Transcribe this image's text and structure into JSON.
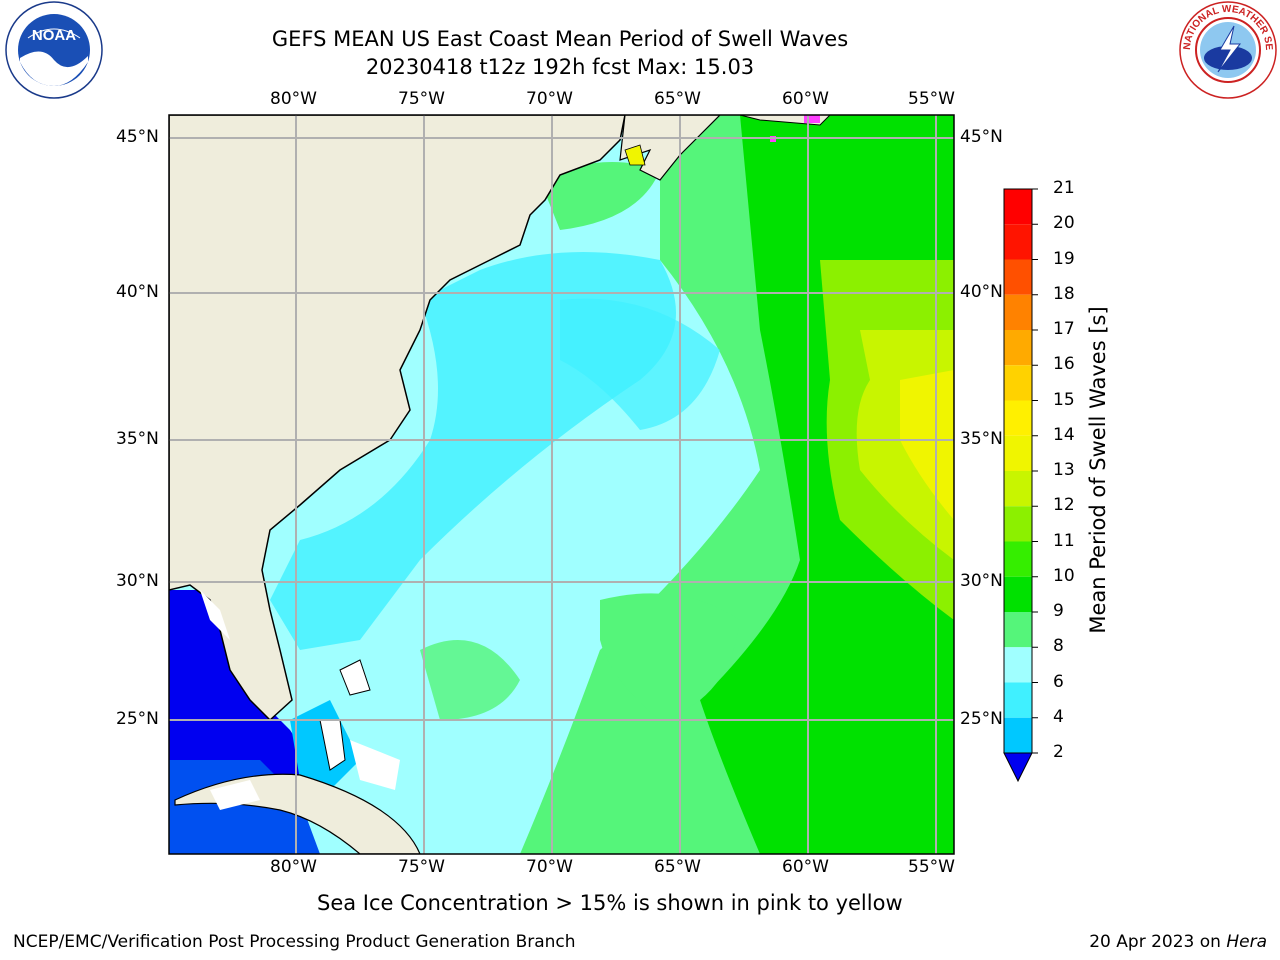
{
  "title_line1": "GEFS MEAN US East Coast Mean Period of Swell Waves",
  "title_line2": "20230418 t12z 192h fcst   Max: 15.03",
  "logos": {
    "left": {
      "icon": "noaa-logo",
      "text": "NOAA"
    },
    "right": {
      "icon": "nws-logo",
      "text": "NATIONAL WEATHER SERVICE"
    }
  },
  "map": {
    "lon_labels": [
      "80°W",
      "75°W",
      "70°W",
      "65°W",
      "60°W",
      "55°W"
    ],
    "lat_labels": [
      "45°N",
      "40°N",
      "35°N",
      "30°N",
      "25°N"
    ],
    "land_color": "#efeddc",
    "grid_color": "#b0b0b0"
  },
  "colorbar": {
    "label": "Mean Period of Swell Waves [s]",
    "ticks": [
      "2",
      "4",
      "6",
      "8",
      "9",
      "10",
      "11",
      "12",
      "13",
      "14",
      "15",
      "16",
      "17",
      "18",
      "19",
      "20",
      "21"
    ],
    "colors": [
      "#0050f0",
      "#00c8ff",
      "#40f0ff",
      "#a0ffff",
      "#55f57a",
      "#00e100",
      "#35ee00",
      "#8cf000",
      "#c8f500",
      "#f0f500",
      "#fff000",
      "#ffd200",
      "#ffaa00",
      "#ff8200",
      "#ff5000",
      "#ff1400",
      "#ff0000"
    ],
    "under_color": "#0000f0"
  },
  "ice_note": "Sea Ice Concentration > 15% is shown in pink to yellow",
  "footer": {
    "left": "NCEP/EMC/Verification Post Processing Product Generation Branch",
    "date": "20 Apr 2023 on ",
    "host": "Hera"
  }
}
